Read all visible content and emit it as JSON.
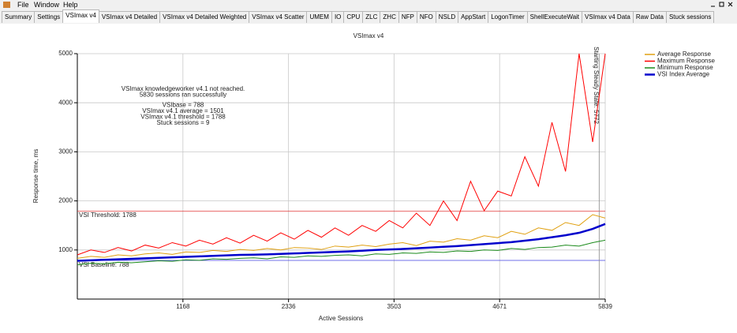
{
  "menu": [
    "File",
    "Window",
    "Help"
  ],
  "tabs": [
    "Summary",
    "Settings",
    "VSImax v4",
    "VSImax v4 Detailed",
    "VSImax v4 Detailed Weighted",
    "VSImax v4 Scatter",
    "UMEM",
    "IO",
    "CPU",
    "ZLC",
    "ZHC",
    "NFP",
    "NFO",
    "NSLD",
    "AppStart",
    "LogonTimer",
    "ShellExecuteWait",
    "VSImax v4 Data",
    "Raw Data",
    "Stuck sessions"
  ],
  "selected_tab": "VSImax v4",
  "chart_data": {
    "type": "line",
    "title": "VSImax v4",
    "x_label": "Active Sessions",
    "y_label": "Response time, ms",
    "xlim": [
      0,
      5839
    ],
    "xticks": [
      1168,
      2336,
      3503,
      4671,
      5839
    ],
    "ylim": [
      0,
      5000
    ],
    "yticks": [
      1000,
      2000,
      3000,
      4000,
      5000
    ],
    "grid": true,
    "legend": "top-right",
    "annotations": [
      "VSImax knowledgeworker v4.1 not reached.",
      "5830 sessions ran successfully",
      "VSIbase = 788",
      "VSImax v4.1 average = 1501",
      "VSImax v4.1 threshold = 1788",
      "Stuck sessions = 9"
    ],
    "threshold": {
      "value": 1788,
      "label": "VSI Threshold: 1788"
    },
    "baseline": {
      "value": 788,
      "label": "VSI Baseline: 788"
    },
    "steady_state": {
      "value": 5772,
      "label": "Starting Steady State: 5772"
    },
    "x": [
      0,
      150,
      300,
      450,
      600,
      750,
      900,
      1050,
      1200,
      1350,
      1500,
      1650,
      1800,
      1950,
      2100,
      2250,
      2400,
      2550,
      2700,
      2850,
      3000,
      3150,
      3300,
      3450,
      3600,
      3750,
      3900,
      4050,
      4200,
      4350,
      4500,
      4650,
      4800,
      4950,
      5100,
      5250,
      5400,
      5550,
      5700,
      5839
    ],
    "series": [
      {
        "name": "Average Response",
        "color": "#e0a010",
        "values": [
          830,
          870,
          850,
          900,
          880,
          920,
          940,
          910,
          960,
          950,
          990,
          970,
          1010,
          990,
          1030,
          1000,
          1050,
          1040,
          1010,
          1080,
          1060,
          1100,
          1070,
          1120,
          1150,
          1090,
          1180,
          1160,
          1230,
          1200,
          1290,
          1250,
          1380,
          1320,
          1450,
          1400,
          1560,
          1500,
          1720,
          1650
        ]
      },
      {
        "name": "Maximum Response",
        "color": "#ff0000",
        "values": [
          900,
          1000,
          950,
          1050,
          980,
          1100,
          1040,
          1150,
          1080,
          1200,
          1120,
          1250,
          1140,
          1300,
          1180,
          1350,
          1220,
          1400,
          1260,
          1450,
          1300,
          1500,
          1380,
          1600,
          1450,
          1750,
          1500,
          2000,
          1600,
          2400,
          1800,
          2200,
          2100,
          2900,
          2300,
          3600,
          2600,
          5000,
          3200,
          5000
        ]
      },
      {
        "name": "Minimum Response",
        "color": "#1a8a1a",
        "values": [
          700,
          730,
          720,
          750,
          740,
          760,
          780,
          770,
          800,
          790,
          820,
          810,
          830,
          840,
          820,
          860,
          850,
          880,
          870,
          890,
          900,
          880,
          920,
          910,
          940,
          930,
          960,
          950,
          980,
          970,
          1000,
          990,
          1030,
          1010,
          1050,
          1060,
          1100,
          1080,
          1150,
          1200
        ]
      },
      {
        "name": "VSI Index Average",
        "color": "#0000cc",
        "values": [
          780,
          790,
          800,
          810,
          820,
          830,
          840,
          850,
          860,
          870,
          880,
          890,
          900,
          905,
          910,
          920,
          930,
          940,
          950,
          960,
          970,
          985,
          1000,
          1010,
          1020,
          1035,
          1050,
          1065,
          1080,
          1100,
          1120,
          1140,
          1160,
          1190,
          1220,
          1260,
          1300,
          1350,
          1430,
          1530
        ]
      }
    ]
  }
}
